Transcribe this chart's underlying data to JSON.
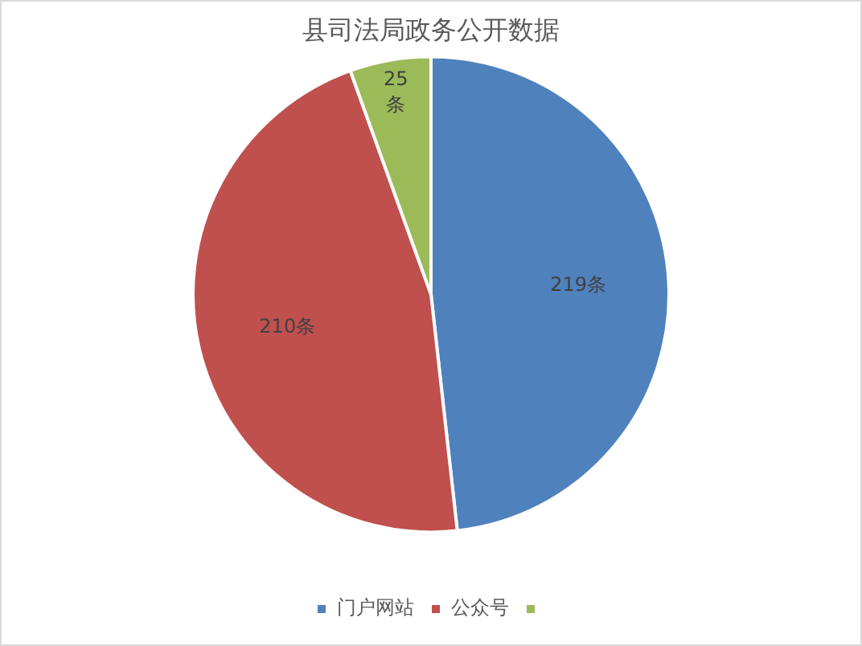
{
  "chart_data": {
    "type": "pie",
    "title": "县司法局政务公开数据",
    "categories": [
      "门户网站",
      "公众号",
      null
    ],
    "values": [
      219,
      210,
      25
    ],
    "colors": [
      "#4f81bd",
      "#c0504d",
      "#9bbb59"
    ],
    "value_labels": [
      "219条",
      "210条",
      "25条"
    ],
    "legend": "bottom"
  }
}
